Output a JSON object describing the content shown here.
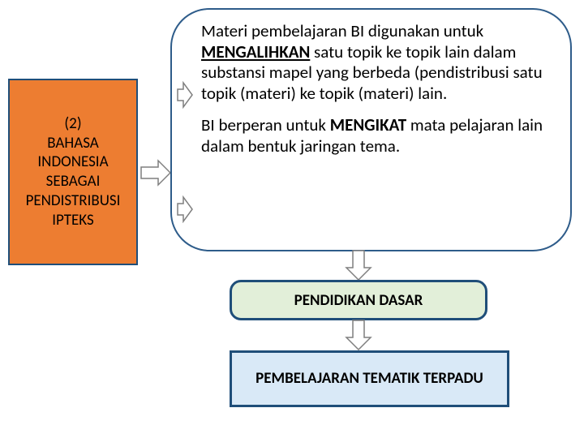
{
  "left_box": {
    "text": "(2)\nBAHASA INDONESIA SEBAGAI PENDISTRIBUSI IPTEKS",
    "bg_color": "#ed7d31",
    "border_color": "#1f4e79",
    "font_size": 19
  },
  "main_box": {
    "para1_pre": "Materi pembelajaran  BI  digunakan untuk ",
    "para1_bold": "MENGALIHKAN",
    "para1_post": " satu topik ke topik lain dalam substansi mapel yang berbeda  (pendistribusi satu topik (materi) ke topik (materi) lain.",
    "para2_pre": "BI berperan untuk ",
    "para2_bold": "MENGIKAT",
    "para2_post": " mata pelajaran lain dalam bentuk jaringan tema.",
    "border_color": "#2e5c8a",
    "border_radius": 48,
    "font_size": 21
  },
  "mid_box": {
    "text": "PENDIDIKAN DASAR",
    "bg_color": "#e2efd9",
    "border_color": "#1f4e79",
    "font_size": 19
  },
  "bottom_box": {
    "text": "PEMBELAJARAN TEMATIK TERPADU",
    "bg_color": "#d9e9f7",
    "border_color": "#1f4e79",
    "font_size": 19
  },
  "arrow": {
    "stroke": "#7f7f7f",
    "fill": "#ffffff"
  }
}
